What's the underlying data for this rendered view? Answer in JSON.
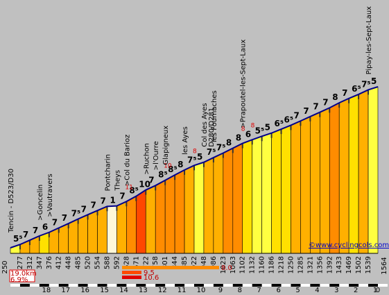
{
  "chart_data": {
    "type": "area",
    "x_unit": "km",
    "x_axis_ticks": [
      18,
      17,
      16,
      15,
      14,
      13,
      12,
      11,
      10,
      9,
      8,
      7,
      6,
      5,
      4,
      3,
      2,
      1,
      0
    ],
    "start_altitude": "250",
    "end_altitude": "1564",
    "altitudes": [
      277,
      312,
      347,
      376,
      412,
      448,
      485,
      520,
      554,
      588,
      592,
      628,
      671,
      722,
      758,
      801,
      844,
      885,
      922,
      948,
      986,
      1023,
      1063,
      1102,
      1132,
      1160,
      1186,
      1218,
      1250,
      1285,
      1321,
      1356,
      1392,
      1433,
      1469,
      1502,
      1539
    ],
    "altitude_labels": [
      "277",
      "312",
      "347",
      "376",
      "412",
      "448",
      "485",
      "520",
      "554",
      "588",
      "592",
      "628",
      "671",
      "722",
      "758",
      "801",
      "844",
      "885",
      "922",
      "948",
      "986",
      "1023",
      "1063",
      "1102",
      "1132",
      "1160",
      "1186",
      "1218",
      "1250",
      "1285",
      "1321",
      "1356",
      "1392",
      "1433",
      "1469",
      "1502",
      "1539"
    ],
    "gradients": [
      "5⁵",
      "7",
      "7",
      "6",
      "7",
      "7",
      "7⁵",
      "7",
      "7",
      "7",
      "1",
      "7",
      "8⁵",
      "10",
      "7",
      "8⁵",
      "8⁵",
      "8",
      "7⁵",
      "5",
      "7⁵",
      "7⁵",
      "8",
      "8",
      "6",
      "5⁵",
      "5",
      "6⁵",
      "6⁵",
      "7",
      "7",
      "7",
      "7",
      "8",
      "7",
      "6⁵",
      "7⁵",
      "5"
    ],
    "gradient_values": [
      5.5,
      7,
      7,
      6,
      7,
      7,
      7.5,
      7,
      7,
      7,
      1,
      7,
      8.5,
      10,
      7,
      8.5,
      8.5,
      8,
      7.5,
      5,
      7.5,
      7.5,
      8,
      8,
      6,
      5.5,
      5,
      6.5,
      6.5,
      7,
      7,
      7,
      7,
      8,
      7,
      6.5,
      7.5,
      5
    ],
    "max_gradient_annotations": [
      {
        "text": "11",
        "segment": 12
      },
      {
        "text": "10",
        "segment": 16
      },
      {
        "text": "8",
        "segment": 19
      },
      {
        "text": "8",
        "segment": 24
      },
      {
        "text": "8",
        "segment": 25
      }
    ],
    "places": [
      {
        "name": "Tencin - D523/D30",
        "segment": 0
      },
      {
        "name": ">Goncelin",
        "segment": 3
      },
      {
        "name": ">Vautravers",
        "segment": 4
      },
      {
        "name": "Pontcharin",
        "segment": 10
      },
      {
        "name": "Theys",
        "segment": 11
      },
      {
        "name": ">Col du Barioz",
        "segment": 12
      },
      {
        "name": ">Ruchon",
        "segment": 14
      },
      {
        "name": ">l'Ourre",
        "segment": 15
      },
      {
        "name": "Glapigneux",
        "segment": 16
      },
      {
        "name": "les Ayes",
        "segment": 18
      },
      {
        "name": "Col des Ayes",
        "segment": 20
      },
      {
        "name": "D280/D281",
        "segment": 20
      },
      {
        "name": "les Fournaches",
        "segment": 21
      },
      {
        "name": ">Prapoutel-les-Sept-Laux",
        "segment": 24
      },
      {
        "name": "Pipay-les-Sept-Laux",
        "segment": 37
      }
    ],
    "summary": {
      "distance": "19.0km",
      "avg_gradient": "6.9%",
      "bar_values": [
        "8.0",
        "9.5",
        "10.6"
      ]
    },
    "credit": "©www.cyclingcols.com",
    "colors": {
      "background": "#c0c0c0",
      "grad_1": "#fff8d8",
      "grad_5": "#ffff40",
      "grad_6": "#ffe000",
      "grad_7": "#ffb000",
      "grad_8": "#ff8c00",
      "grad_10": "#ff4800",
      "outline": "#00008b"
    }
  }
}
